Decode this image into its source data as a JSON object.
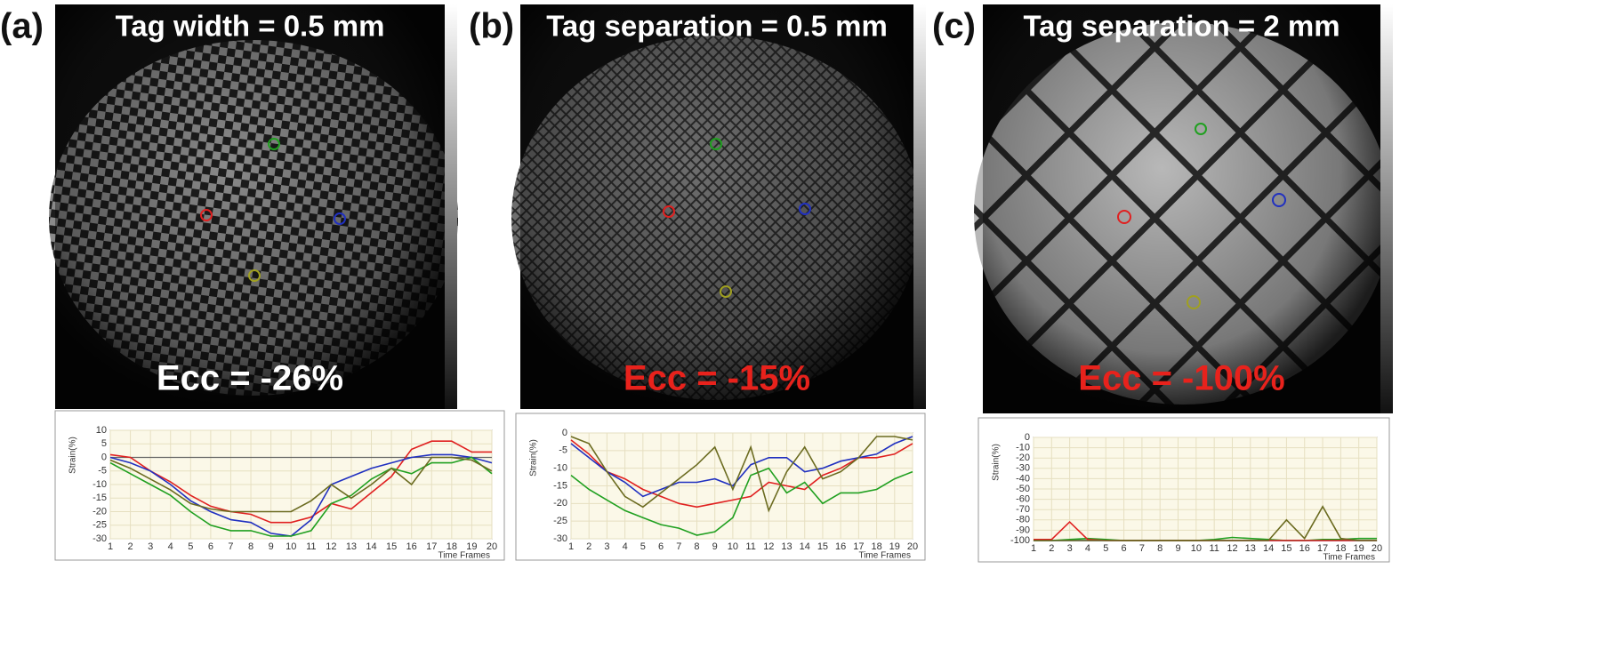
{
  "panels": [
    {
      "label": "(a)",
      "title": "Tag width = 0.5 mm",
      "ecc": "Ecc = -26%",
      "ecc_color": "#ffffff"
    },
    {
      "label": "(b)",
      "title": "Tag separation = 0.5 mm",
      "ecc": "Ecc = -15%",
      "ecc_color": "#e8221c"
    },
    {
      "label": "(c)",
      "title": "Tag separation = 2 mm",
      "ecc": "Ecc = -100%",
      "ecc_color": "#e8221c"
    }
  ],
  "chart_data": [
    {
      "type": "line",
      "y_label": "Strain(%)",
      "x_label": "Time Frames",
      "x": [
        1,
        2,
        3,
        4,
        5,
        6,
        7,
        8,
        9,
        10,
        11,
        12,
        13,
        14,
        15,
        16,
        17,
        18,
        19,
        20
      ],
      "xlim": [
        1,
        20
      ],
      "xticks": [
        1,
        2,
        3,
        4,
        5,
        6,
        7,
        8,
        9,
        10,
        11,
        12,
        13,
        14,
        15,
        16,
        17,
        18,
        19,
        20
      ],
      "ylim": [
        -30,
        10
      ],
      "yticks": [
        -30,
        -25,
        -20,
        -15,
        -10,
        -5,
        0,
        5,
        10
      ],
      "grid": true,
      "zero_line": true,
      "series": [
        {
          "color": "#e02020",
          "values": [
            1,
            0,
            -5,
            -9,
            -14,
            -18,
            -20,
            -21,
            -24,
            -24,
            -22,
            -17,
            -19,
            -13,
            -7,
            3,
            6,
            6,
            2,
            2
          ]
        },
        {
          "color": "#2030c0",
          "values": [
            0,
            -2,
            -5,
            -10,
            -16,
            -20,
            -23,
            -24,
            -28,
            -29,
            -23,
            -10,
            -7,
            -4,
            -2,
            0,
            1,
            1,
            0,
            -2
          ]
        },
        {
          "color": "#20a020",
          "values": [
            -2,
            -6,
            -10,
            -14,
            -20,
            -25,
            -27,
            -27,
            -29,
            -29,
            -27,
            -17,
            -14,
            -8,
            -4,
            -6,
            -2,
            -2,
            0,
            -6
          ]
        },
        {
          "color": "#6b6b20",
          "values": [
            -1,
            -4,
            -8,
            -12,
            -17,
            -19,
            -20,
            -20,
            -20,
            -20,
            -16,
            -10,
            -15,
            -10,
            -4,
            -10,
            0,
            0,
            -1,
            -5
          ]
        }
      ]
    },
    {
      "type": "line",
      "y_label": "Strain(%)",
      "x_label": "Time Frames",
      "x": [
        1,
        2,
        3,
        4,
        5,
        6,
        7,
        8,
        9,
        10,
        11,
        12,
        13,
        14,
        15,
        16,
        17,
        18,
        19,
        20
      ],
      "xlim": [
        1,
        20
      ],
      "xticks": [
        1,
        2,
        3,
        4,
        5,
        6,
        7,
        8,
        9,
        10,
        11,
        12,
        13,
        14,
        15,
        16,
        17,
        18,
        19,
        20
      ],
      "ylim": [
        -30,
        0
      ],
      "yticks": [
        -30,
        -25,
        -20,
        -15,
        -10,
        -5,
        0
      ],
      "grid": true,
      "zero_line": false,
      "series": [
        {
          "color": "#e02020",
          "values": [
            -2,
            -6,
            -11,
            -13,
            -16,
            -18,
            -20,
            -21,
            -20,
            -19,
            -18,
            -14,
            -15,
            -16,
            -12,
            -10,
            -7,
            -7,
            -6,
            -3
          ]
        },
        {
          "color": "#2030c0",
          "values": [
            -3,
            -7,
            -11,
            -14,
            -18,
            -16,
            -14,
            -14,
            -13,
            -15,
            -9,
            -7,
            -7,
            -11,
            -10,
            -8,
            -7,
            -6,
            -3,
            -1
          ]
        },
        {
          "color": "#20a020",
          "values": [
            -12,
            -16,
            -19,
            -22,
            -24,
            -26,
            -27,
            -29,
            -28,
            -24,
            -12,
            -10,
            -17,
            -14,
            -20,
            -17,
            -17,
            -16,
            -13,
            -11
          ]
        },
        {
          "color": "#6b6b20",
          "values": [
            -1,
            -3,
            -11,
            -18,
            -21,
            -17,
            -13,
            -9,
            -4,
            -16,
            -4,
            -22,
            -11,
            -4,
            -13,
            -11,
            -7,
            -1,
            -1,
            -2
          ]
        }
      ]
    },
    {
      "type": "line",
      "y_label": "Strain(%)",
      "x_label": "Time Frames",
      "x": [
        1,
        2,
        3,
        4,
        5,
        6,
        7,
        8,
        9,
        10,
        11,
        12,
        13,
        14,
        15,
        16,
        17,
        18,
        19,
        20
      ],
      "xlim": [
        1,
        20
      ],
      "xticks": [
        1,
        2,
        3,
        4,
        5,
        6,
        7,
        8,
        9,
        10,
        11,
        12,
        13,
        14,
        15,
        16,
        17,
        18,
        19,
        20
      ],
      "ylim": [
        -100,
        0
      ],
      "yticks": [
        -100,
        -90,
        -80,
        -70,
        -60,
        -50,
        -40,
        -30,
        -20,
        -10,
        0
      ],
      "grid": true,
      "zero_line": false,
      "series": [
        {
          "color": "#2030c0",
          "values": [
            -100,
            -100,
            -100,
            -100,
            -100,
            -100,
            -100,
            -100,
            -100,
            -100,
            -100,
            -100,
            -100,
            -100,
            -100,
            -100,
            -100,
            -100,
            -100,
            -100
          ]
        },
        {
          "color": "#20a020",
          "values": [
            -100,
            -100,
            -99,
            -98,
            -99,
            -100,
            -100,
            -100,
            -100,
            -100,
            -99,
            -97,
            -98,
            -99,
            -100,
            -100,
            -99,
            -99,
            -98,
            -98
          ]
        },
        {
          "color": "#e02020",
          "values": [
            -99,
            -99,
            -82,
            -99,
            -100,
            -100,
            -100,
            -100,
            -100,
            -100,
            -100,
            -100,
            -100,
            -100,
            -100,
            -100,
            -100,
            -100,
            -100,
            -100
          ]
        },
        {
          "color": "#6b6b20",
          "values": [
            -100,
            -100,
            -100,
            -100,
            -100,
            -100,
            -100,
            -100,
            -100,
            -100,
            -100,
            -100,
            -100,
            -100,
            -80,
            -98,
            -67,
            -98,
            -100,
            -100
          ]
        }
      ]
    }
  ]
}
